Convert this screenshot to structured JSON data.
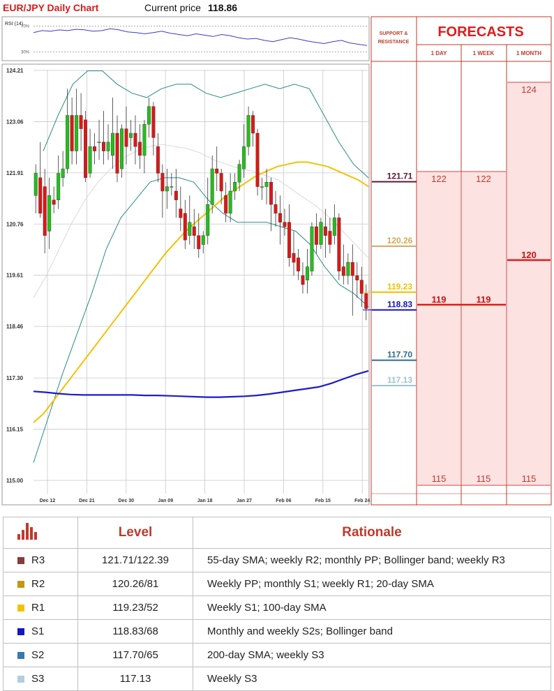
{
  "header": {
    "title": "EUR/JPY Daily Chart",
    "price_label": "Current price",
    "price_value": "118.86"
  },
  "forecast_panel": {
    "title": "FORECASTS",
    "sr_label_line1": "SUPPORT &",
    "sr_label_line2": "RESISTANCE",
    "columns": [
      "1 DAY",
      "1 WEEK",
      "1 MONTH"
    ],
    "one_day": {
      "high": "122",
      "mid": "119",
      "low": "115"
    },
    "one_week": {
      "high": "122",
      "mid": "119",
      "low": "115"
    },
    "one_month": {
      "high": "124",
      "mid": "120",
      "low": "115"
    },
    "levels": [
      {
        "label": "121.71",
        "value": 121.71,
        "color": "#5a1a32"
      },
      {
        "label": "120.26",
        "value": 120.26,
        "color": "#d4a85a"
      },
      {
        "label": "119.23",
        "value": 119.23,
        "color": "#f2c200"
      },
      {
        "label": "118.83",
        "value": 118.83,
        "color": "#1010c8"
      },
      {
        "label": "117.70",
        "value": 117.7,
        "color": "#2e6b8e"
      },
      {
        "label": "117.13",
        "value": 117.13,
        "color": "#9fc3d3"
      }
    ]
  },
  "table": {
    "col_level": "Level",
    "col_rationale": "Rationale",
    "rows": [
      {
        "name": "R3",
        "color": "#8b3a3a",
        "level": "121.71/122.39",
        "rationale": "55-day SMA; weekly R2; monthly PP; Bollinger band; weekly R3"
      },
      {
        "name": "R2",
        "color": "#c8960c",
        "level": "120.26/81",
        "rationale": "Weekly PP; monthly S1; weekly R1; 20-day SMA"
      },
      {
        "name": "R1",
        "color": "#f2c200",
        "level": "119.23/52",
        "rationale": "Weekly S1; 100-day SMA"
      },
      {
        "name": "S1",
        "color": "#1414c8",
        "level": "118.83/68",
        "rationale": "Monthly and weekly S2s; Bollinger band"
      },
      {
        "name": "S2",
        "color": "#3a78b0",
        "level": "117.70/65",
        "rationale": "200-day SMA; weekly S3"
      },
      {
        "name": "S3",
        "color": "#b3cde0",
        "level": "117.13",
        "rationale": "Weekly S3"
      }
    ]
  },
  "chart_data": [
    {
      "type": "line",
      "title": "RSI (14)",
      "y_tick_labels": [
        "70%",
        "30%"
      ],
      "ylim": [
        20,
        80
      ],
      "values": [
        60,
        63,
        62,
        64,
        63,
        65,
        64,
        62,
        63,
        66,
        64,
        61,
        60,
        58,
        60,
        62,
        59,
        57,
        55,
        58,
        56,
        54,
        57,
        55,
        52,
        50,
        51,
        48,
        46,
        49,
        52,
        50,
        47,
        45,
        43,
        46,
        48,
        44,
        42,
        40
      ]
    },
    {
      "type": "candlestick",
      "x_tick_labels": [
        "Dec 12",
        "Dec 21",
        "Dec 30",
        "Jan 09",
        "Jan 18",
        "Jan 27",
        "Feb 06",
        "Feb 15",
        "Feb 24"
      ],
      "y_tick_labels": [
        "124.21",
        "123.06",
        "121.91",
        "120.76",
        "119.61",
        "118.46",
        "117.30",
        "116.15",
        "115.00"
      ],
      "ylim": [
        115.0,
        124.21
      ],
      "candles": [
        {
          "o": 121.4,
          "h": 122.1,
          "c": 121.9,
          "l": 121.0
        },
        {
          "o": 121.8,
          "h": 122.6,
          "c": 121.0,
          "l": 120.9
        },
        {
          "o": 121.6,
          "h": 122.0,
          "c": 120.5,
          "l": 120.1
        },
        {
          "o": 120.6,
          "h": 121.8,
          "c": 121.4,
          "l": 120.2
        },
        {
          "o": 121.3,
          "h": 121.6,
          "c": 121.2,
          "l": 121.0
        },
        {
          "o": 121.3,
          "h": 122.3,
          "c": 121.9,
          "l": 121.1
        },
        {
          "o": 121.8,
          "h": 122.4,
          "c": 122.0,
          "l": 121.6
        },
        {
          "o": 122.0,
          "h": 123.8,
          "c": 123.2,
          "l": 121.9
        },
        {
          "o": 123.2,
          "h": 123.6,
          "c": 122.4,
          "l": 122.1
        },
        {
          "o": 122.4,
          "h": 123.8,
          "c": 123.2,
          "l": 122.1
        },
        {
          "o": 123.2,
          "h": 123.7,
          "c": 122.9,
          "l": 122.4
        },
        {
          "o": 123.1,
          "h": 123.3,
          "c": 121.8,
          "l": 121.7
        },
        {
          "o": 121.9,
          "h": 122.9,
          "c": 122.5,
          "l": 121.8
        },
        {
          "o": 122.5,
          "h": 122.8,
          "c": 122.4,
          "l": 122.1
        },
        {
          "o": 122.6,
          "h": 123.1,
          "c": 122.6,
          "l": 122.2
        },
        {
          "o": 122.6,
          "h": 123.3,
          "c": 122.4,
          "l": 122.1
        },
        {
          "o": 122.4,
          "h": 123.0,
          "c": 122.6,
          "l": 122.2
        },
        {
          "o": 122.3,
          "h": 123.6,
          "c": 122.8,
          "l": 122.0
        },
        {
          "o": 122.8,
          "h": 123.2,
          "c": 121.9,
          "l": 121.7
        },
        {
          "o": 122.0,
          "h": 123.0,
          "c": 122.9,
          "l": 121.8
        },
        {
          "o": 122.9,
          "h": 123.4,
          "c": 122.5,
          "l": 122.1
        },
        {
          "o": 122.7,
          "h": 123.1,
          "c": 122.8,
          "l": 122.4
        },
        {
          "o": 122.8,
          "h": 123.2,
          "c": 122.5,
          "l": 122.1
        },
        {
          "o": 122.6,
          "h": 123.0,
          "c": 122.3,
          "l": 122.0
        },
        {
          "o": 122.3,
          "h": 123.1,
          "c": 123.0,
          "l": 121.9
        },
        {
          "o": 123.0,
          "h": 123.6,
          "c": 123.4,
          "l": 122.7
        },
        {
          "o": 123.4,
          "h": 123.5,
          "c": 122.7,
          "l": 122.3
        },
        {
          "o": 122.5,
          "h": 122.8,
          "c": 121.9,
          "l": 121.7
        },
        {
          "o": 121.9,
          "h": 122.1,
          "c": 121.5,
          "l": 120.9
        },
        {
          "o": 121.5,
          "h": 122.0,
          "c": 121.6,
          "l": 121.1
        },
        {
          "o": 121.6,
          "h": 121.9,
          "c": 121.6,
          "l": 121.4
        },
        {
          "o": 121.5,
          "h": 122.0,
          "c": 121.3,
          "l": 120.9
        },
        {
          "o": 121.1,
          "h": 121.6,
          "c": 120.9,
          "l": 120.6
        },
        {
          "o": 121.0,
          "h": 121.3,
          "c": 120.4,
          "l": 120.2
        },
        {
          "o": 120.5,
          "h": 121.4,
          "c": 120.8,
          "l": 120.3
        },
        {
          "o": 120.7,
          "h": 121.1,
          "c": 120.5,
          "l": 120.2
        },
        {
          "o": 120.5,
          "h": 121.0,
          "c": 120.2,
          "l": 120.0
        },
        {
          "o": 120.3,
          "h": 120.6,
          "c": 120.5,
          "l": 120.1
        },
        {
          "o": 120.5,
          "h": 121.8,
          "c": 121.2,
          "l": 120.3
        },
        {
          "o": 121.2,
          "h": 122.3,
          "c": 122.0,
          "l": 121.0
        },
        {
          "o": 122.0,
          "h": 122.5,
          "c": 121.9,
          "l": 121.5
        },
        {
          "o": 121.9,
          "h": 122.0,
          "c": 121.5,
          "l": 121.2
        },
        {
          "o": 121.4,
          "h": 121.7,
          "c": 121.0,
          "l": 120.8
        },
        {
          "o": 121.0,
          "h": 121.9,
          "c": 121.5,
          "l": 120.8
        },
        {
          "o": 121.5,
          "h": 121.9,
          "c": 121.7,
          "l": 121.3
        },
        {
          "o": 121.7,
          "h": 122.2,
          "c": 122.1,
          "l": 121.5
        },
        {
          "o": 122.0,
          "h": 123.0,
          "c": 122.5,
          "l": 121.8
        },
        {
          "o": 122.5,
          "h": 123.4,
          "c": 123.2,
          "l": 122.3
        },
        {
          "o": 123.2,
          "h": 123.3,
          "c": 122.8,
          "l": 122.5
        },
        {
          "o": 122.8,
          "h": 122.9,
          "c": 121.6,
          "l": 121.4
        },
        {
          "o": 121.6,
          "h": 121.8,
          "c": 121.6,
          "l": 121.3
        },
        {
          "o": 121.6,
          "h": 122.0,
          "c": 121.7,
          "l": 121.2
        },
        {
          "o": 121.7,
          "h": 121.8,
          "c": 121.2,
          "l": 120.6
        },
        {
          "o": 121.2,
          "h": 121.5,
          "c": 121.0,
          "l": 120.7
        },
        {
          "o": 121.0,
          "h": 121.4,
          "c": 120.8,
          "l": 120.3
        },
        {
          "o": 120.8,
          "h": 121.1,
          "c": 120.7,
          "l": 120.5
        },
        {
          "o": 120.8,
          "h": 121.2,
          "c": 120.0,
          "l": 119.8
        },
        {
          "o": 120.1,
          "h": 120.6,
          "c": 119.9,
          "l": 119.6
        },
        {
          "o": 120.0,
          "h": 120.2,
          "c": 119.7,
          "l": 119.5
        },
        {
          "o": 119.6,
          "h": 119.9,
          "c": 119.4,
          "l": 119.2
        },
        {
          "o": 119.5,
          "h": 120.2,
          "c": 119.8,
          "l": 119.2
        },
        {
          "o": 119.7,
          "h": 120.8,
          "c": 120.7,
          "l": 119.6
        },
        {
          "o": 120.7,
          "h": 121.0,
          "c": 120.3,
          "l": 120.1
        },
        {
          "o": 120.3,
          "h": 120.9,
          "c": 120.8,
          "l": 120.2
        },
        {
          "o": 120.7,
          "h": 121.1,
          "c": 120.5,
          "l": 120.0
        },
        {
          "o": 120.6,
          "h": 120.9,
          "c": 120.3,
          "l": 120.1
        },
        {
          "o": 120.5,
          "h": 121.2,
          "c": 120.9,
          "l": 120.3
        },
        {
          "o": 120.9,
          "h": 121.0,
          "c": 119.7,
          "l": 119.5
        },
        {
          "o": 119.8,
          "h": 120.3,
          "c": 119.6,
          "l": 119.4
        },
        {
          "o": 119.6,
          "h": 120.1,
          "c": 119.9,
          "l": 119.4
        },
        {
          "o": 119.9,
          "h": 120.3,
          "c": 119.6,
          "l": 118.7
        },
        {
          "o": 119.6,
          "h": 119.9,
          "c": 119.5,
          "l": 119.1
        },
        {
          "o": 119.5,
          "h": 119.8,
          "c": 119.2,
          "l": 118.9
        },
        {
          "o": 119.2,
          "h": 119.4,
          "c": 118.86,
          "l": 118.6
        }
      ],
      "sma_yellow": [
        116.3,
        116.5,
        116.8,
        117.1,
        117.4,
        117.7,
        118.0,
        118.3,
        118.6,
        118.9,
        119.2,
        119.5,
        119.8,
        120.1,
        120.35,
        120.6,
        120.8,
        121.0,
        121.2,
        121.4,
        121.55,
        121.7,
        121.85,
        121.95,
        122.05,
        122.1,
        122.15,
        122.15,
        122.1,
        122.05,
        121.95,
        121.85,
        121.75,
        121.6
      ],
      "sma_blue": [
        117.0,
        116.98,
        116.95,
        116.93,
        116.92,
        116.92,
        116.92,
        116.92,
        116.92,
        116.91,
        116.91,
        116.9,
        116.89,
        116.88,
        116.87,
        116.87,
        116.88,
        116.89,
        116.91,
        116.94,
        116.98,
        117.02,
        117.06,
        117.1,
        117.18,
        117.28,
        117.38,
        117.46
      ],
      "sma_grey": [
        119.1,
        119.6,
        120.2,
        120.8,
        121.3,
        121.7,
        122.0,
        122.25,
        122.4,
        122.5,
        122.55,
        122.5,
        122.45,
        122.35,
        122.2,
        122.1,
        122.0,
        121.95,
        121.85,
        121.75,
        121.55,
        121.35,
        121.15,
        120.9,
        120.6,
        120.3,
        120.0
      ],
      "bb_upper": [
        122.4,
        123.2,
        123.9,
        124.2,
        124.2,
        123.9,
        123.7,
        123.6,
        123.8,
        123.9,
        123.9,
        123.7,
        123.6,
        123.7,
        123.8,
        123.9,
        123.8,
        123.9,
        123.8,
        123.2,
        122.6,
        122.1,
        121.8
      ],
      "bb_lower": [
        115.4,
        116.4,
        117.4,
        118.3,
        119.2,
        120.2,
        120.9,
        121.3,
        121.7,
        121.8,
        121.8,
        121.7,
        121.3,
        121.0,
        120.8,
        120.8,
        120.8,
        120.7,
        120.6,
        120.3,
        119.8,
        119.4,
        119.2,
        118.9
      ],
      "annotations": [
        {
          "value": 121.71,
          "label": "121.71"
        },
        {
          "value": 120.26,
          "label": "120.26"
        },
        {
          "value": 119.23,
          "label": "119.23"
        },
        {
          "value": 118.83,
          "label": "118.83"
        },
        {
          "value": 117.7,
          "label": "117.70"
        },
        {
          "value": 117.13,
          "label": "117.13"
        }
      ]
    }
  ]
}
